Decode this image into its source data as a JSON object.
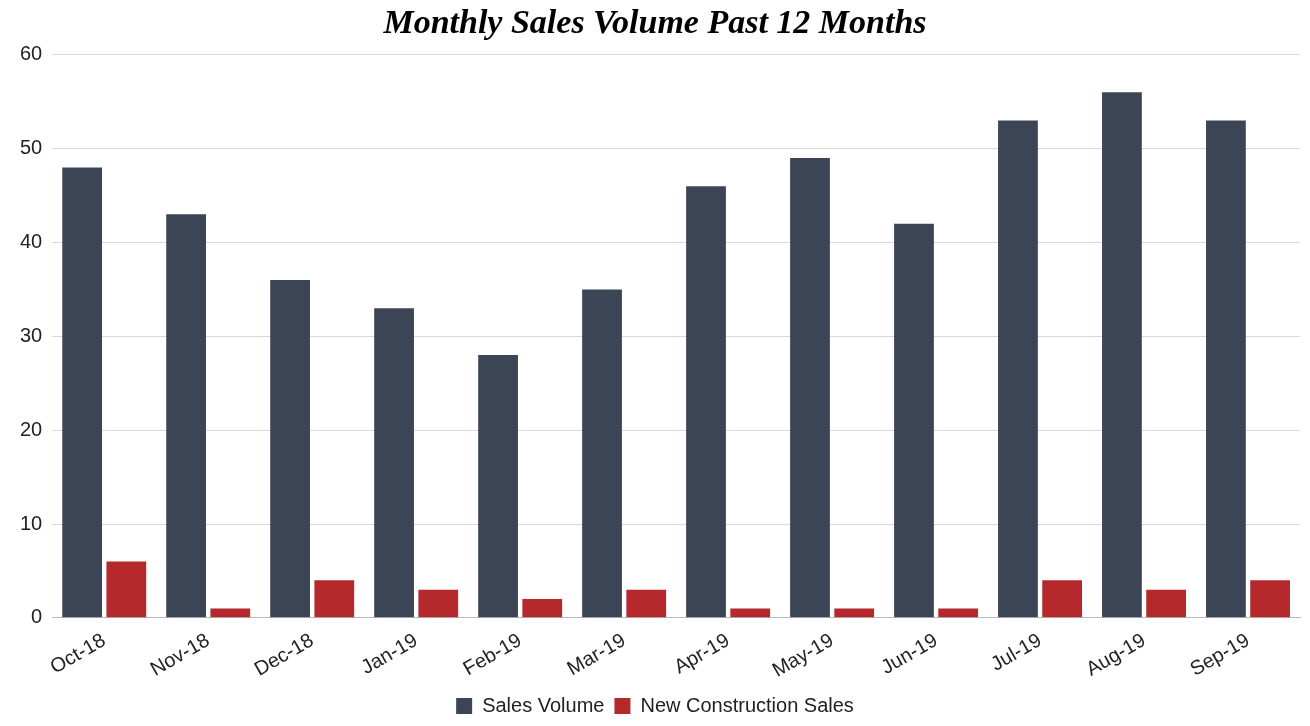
{
  "chart_data": {
    "type": "bar",
    "title": "Monthly Sales Volume Past 12 Months",
    "categories": [
      "Oct-18",
      "Nov-18",
      "Dec-18",
      "Jan-19",
      "Feb-19",
      "Mar-19",
      "Apr-19",
      "May-19",
      "Jun-19",
      "Jul-19",
      "Aug-19",
      "Sep-19"
    ],
    "series": [
      {
        "name": "Sales Volume",
        "color": "#3b4556",
        "values": [
          48,
          43,
          36,
          33,
          28,
          35,
          46,
          49,
          42,
          53,
          56,
          53
        ]
      },
      {
        "name": "New Construction Sales",
        "color": "#b5282c",
        "values": [
          6,
          1,
          4,
          3,
          2,
          3,
          1,
          1,
          1,
          4,
          3,
          4
        ]
      }
    ],
    "ylim": [
      0,
      60
    ],
    "yticks": [
      0,
      10,
      20,
      30,
      40,
      50,
      60
    ],
    "grid": "y",
    "legend": "bottom"
  }
}
